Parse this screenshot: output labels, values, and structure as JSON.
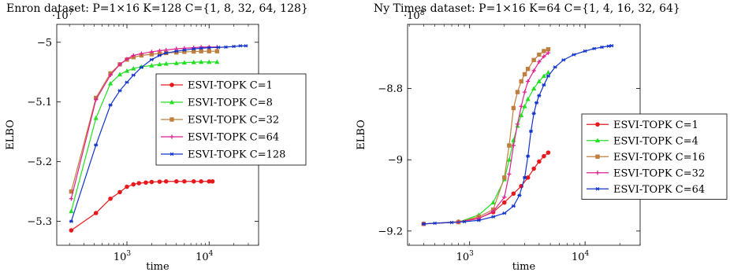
{
  "chart_data": [
    {
      "type": "line",
      "title": "Enron dataset: P=1×16 K=128 C={1, 8, 32, 64, 128}",
      "xlabel": "time",
      "ylabel": "ELBO",
      "x_scale": "log",
      "xlim": [
        140,
        40000
      ],
      "ylim": [
        -5.34,
        -4.97
      ],
      "y_multiplier": "·10^7",
      "x_ticks": [
        {
          "value": 1000,
          "base": "10",
          "exp": "3"
        },
        {
          "value": 10000,
          "base": "10",
          "exp": "4"
        }
      ],
      "y_ticks": [
        {
          "value": -5.0,
          "label": "−5"
        },
        {
          "value": -5.1,
          "label": "−5.1"
        },
        {
          "value": -5.2,
          "label": "−5.2"
        },
        {
          "value": -5.3,
          "label": "−5.3"
        }
      ],
      "legend_position": "center-right",
      "series": [
        {
          "name": "ESVI-TOPK C=1",
          "color": "#e8191c",
          "marker": "circle",
          "x": [
            210,
            420,
            630,
            820,
            1000,
            1200,
            1400,
            1700,
            2000,
            2500,
            3000,
            4000,
            5000,
            6500,
            8000,
            10000,
            11000
          ],
          "y": [
            -5.315,
            -5.286,
            -5.262,
            -5.251,
            -5.242,
            -5.238,
            -5.236,
            -5.235,
            -5.234,
            -5.2335,
            -5.233,
            -5.233,
            -5.233,
            -5.233,
            -5.233,
            -5.233,
            -5.233
          ]
        },
        {
          "name": "ESVI-TOPK C=8",
          "color": "#22e022",
          "marker": "triangle",
          "x": [
            210,
            420,
            630,
            820,
            1000,
            1200,
            1500,
            2000,
            2500,
            3000,
            4000,
            5000,
            6500,
            8000,
            10000,
            12500
          ],
          "y": [
            -5.283,
            -5.127,
            -5.069,
            -5.054,
            -5.048,
            -5.044,
            -5.041,
            -5.039,
            -5.037,
            -5.036,
            -5.035,
            -5.034,
            -5.0335,
            -5.033,
            -5.033,
            -5.033
          ]
        },
        {
          "name": "ESVI-TOPK C=32",
          "color": "#bf7f3f",
          "marker": "square",
          "x": [
            210,
            420,
            630,
            820,
            1000,
            1200,
            1500,
            2000,
            2500,
            3000,
            4000,
            5000,
            6500,
            8000,
            10000,
            12500
          ],
          "y": [
            -5.25,
            -5.093,
            -5.052,
            -5.037,
            -5.029,
            -5.025,
            -5.022,
            -5.02,
            -5.019,
            -5.018,
            -5.017,
            -5.016,
            -5.0155,
            -5.015,
            -5.015,
            -5.015
          ]
        },
        {
          "name": "ESVI-TOPK C=64",
          "color": "#df1f8f",
          "marker": "plus",
          "x": [
            210,
            420,
            630,
            820,
            1000,
            1200,
            1500,
            2000,
            2500,
            3000,
            4000,
            5000,
            6500,
            8000,
            10000,
            12500
          ],
          "y": [
            -5.262,
            -5.096,
            -5.055,
            -5.037,
            -5.028,
            -5.022,
            -5.019,
            -5.016,
            -5.014,
            -5.013,
            -5.011,
            -5.01,
            -5.009,
            -5.008,
            -5.008,
            -5.008
          ]
        },
        {
          "name": "ESVI-TOPK C=128",
          "color": "#1133cc",
          "marker": "star",
          "x": [
            210,
            420,
            630,
            820,
            1000,
            1200,
            1500,
            2000,
            2500,
            3000,
            4000,
            5000,
            6500,
            8000,
            10000,
            13000,
            16000,
            20000,
            24000,
            28000
          ],
          "y": [
            -5.3,
            -5.172,
            -5.105,
            -5.081,
            -5.067,
            -5.055,
            -5.042,
            -5.029,
            -5.022,
            -5.018,
            -5.015,
            -5.013,
            -5.011,
            -5.01,
            -5.009,
            -5.0085,
            -5.008,
            -5.007,
            -5.006,
            -5.006
          ]
        }
      ]
    },
    {
      "type": "line",
      "title": "Ny Times dataset: P=1×16 K=64 C={1, 4, 16, 32, 64}",
      "xlabel": "time",
      "ylabel": "ELBO",
      "x_scale": "log",
      "xlim": [
        290,
        30000
      ],
      "ylim": [
        -9.24,
        -8.62
      ],
      "y_multiplier": "·10^8",
      "x_ticks": [
        {
          "value": 1000,
          "base": "10",
          "exp": "3"
        },
        {
          "value": 10000,
          "base": "10",
          "exp": "4"
        }
      ],
      "y_ticks": [
        {
          "value": -8.8,
          "label": "−8.8"
        },
        {
          "value": -9.0,
          "label": "−9"
        },
        {
          "value": -9.2,
          "label": "−9.2"
        }
      ],
      "legend_position": "center-right",
      "series": [
        {
          "name": "ESVI-TOPK C=1",
          "color": "#e8191c",
          "marker": "circle",
          "x": [
            400,
            800,
            1200,
            1600,
            2000,
            2400,
            2800,
            3200,
            3600,
            4000,
            4400,
            4800
          ],
          "y": [
            -9.18,
            -9.174,
            -9.164,
            -9.147,
            -9.12,
            -9.095,
            -9.074,
            -9.05,
            -9.025,
            -9.005,
            -8.99,
            -8.98
          ]
        },
        {
          "name": "ESVI-TOPK C=4",
          "color": "#22e022",
          "marker": "triangle",
          "x": [
            400,
            800,
            1200,
            1600,
            2000,
            2200,
            2400,
            2600,
            2800,
            3000,
            3200,
            3600,
            4000,
            4400,
            4800
          ],
          "y": [
            -9.18,
            -9.175,
            -9.155,
            -9.12,
            -9.055,
            -9.0,
            -8.945,
            -8.905,
            -8.875,
            -8.85,
            -8.83,
            -8.8,
            -8.78,
            -8.765,
            -8.755
          ]
        },
        {
          "name": "ESVI-TOPK C=16",
          "color": "#bf7f3f",
          "marker": "square",
          "x": [
            400,
            800,
            1200,
            1600,
            2000,
            2200,
            2400,
            2600,
            2800,
            3000,
            3200,
            3600,
            4000,
            4400,
            4800
          ],
          "y": [
            -9.18,
            -9.175,
            -9.16,
            -9.14,
            -9.05,
            -8.96,
            -8.855,
            -8.81,
            -8.78,
            -8.76,
            -8.745,
            -8.72,
            -8.705,
            -8.695,
            -8.69
          ]
        },
        {
          "name": "ESVI-TOPK C=32",
          "color": "#df1f8f",
          "marker": "plus",
          "x": [
            400,
            800,
            1200,
            1600,
            2000,
            2200,
            2400,
            2600,
            2800,
            3000,
            3200,
            3600,
            4000,
            4400,
            4800
          ],
          "y": [
            -9.18,
            -9.175,
            -9.165,
            -9.145,
            -9.105,
            -9.04,
            -8.96,
            -8.9,
            -8.85,
            -8.81,
            -8.78,
            -8.75,
            -8.725,
            -8.71,
            -8.7
          ]
        },
        {
          "name": "ESVI-TOPK C=64",
          "color": "#1133cc",
          "marker": "star",
          "x": [
            400,
            500,
            700,
            900,
            1200,
            1600,
            2000,
            2400,
            2700,
            3000,
            3200,
            3400,
            3600,
            3800,
            4000,
            4400,
            4800,
            5500,
            6500,
            8000,
            10000,
            12000,
            14000,
            16000,
            17000
          ],
          "y": [
            -9.18,
            -9.178,
            -9.176,
            -9.174,
            -9.17,
            -9.16,
            -9.15,
            -9.13,
            -9.1,
            -9.05,
            -8.99,
            -8.92,
            -8.87,
            -8.84,
            -8.82,
            -8.79,
            -8.765,
            -8.74,
            -8.72,
            -8.705,
            -8.695,
            -8.688,
            -8.684,
            -8.681,
            -8.68
          ]
        }
      ]
    }
  ]
}
